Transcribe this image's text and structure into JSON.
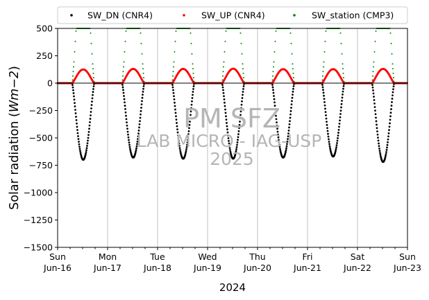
{
  "chart_data": {
    "type": "scatter",
    "title": "",
    "xlabel": "2024",
    "ylabel_prefix": "Solar radiation (",
    "ylabel_unit": "Wm−2",
    "ylabel_suffix": ")",
    "ylim": [
      -1500,
      500
    ],
    "yticks": [
      500,
      250,
      0,
      -250,
      -500,
      -750,
      -1000,
      -1250,
      -1500
    ],
    "ytick_labels": [
      "500",
      "250",
      "0",
      "−250",
      "−500",
      "−750",
      "−1000",
      "−1250",
      "−1500"
    ],
    "x_dates": [
      "2024-06-16",
      "2024-06-17",
      "2024-06-18",
      "2024-06-19",
      "2024-06-20",
      "2024-06-21",
      "2024-06-22",
      "2024-06-23"
    ],
    "x_day_labels": [
      "Sun",
      "Mon",
      "Tue",
      "Wed",
      "Thu",
      "Fri",
      "Sat",
      "Sun"
    ],
    "x_date_labels": [
      "Jun-16",
      "Jun-17",
      "Jun-18",
      "Jun-19",
      "Jun-20",
      "Jun-21",
      "Jun-22",
      "Jun-23"
    ],
    "grid": "vertical",
    "legend": {
      "placement": "top-center",
      "entries": [
        "SW_DN (CNR4)",
        "SW_UP (CNR4)",
        "SW_station (CMP3)"
      ]
    },
    "watermark": [
      "PM SFZ",
      "LAB MICRO - IAG-USP",
      "2025"
    ],
    "series": [
      {
        "name": "SW_DN (CNR4)",
        "color": "#000000",
        "daily_sunrise_hour": 7.0,
        "daily_sunset_hour": 17.6,
        "daily_min": [
          -700,
          -680,
          -690,
          -690,
          -680,
          -670,
          -720
        ]
      },
      {
        "name": "SW_UP (CNR4)",
        "color": "#ff0000",
        "daily_sunrise_hour": 7.0,
        "daily_sunset_hour": 17.6,
        "daily_max": [
          125,
          130,
          130,
          132,
          128,
          128,
          130
        ]
      },
      {
        "name": "SW_station (CMP3)",
        "color": "#008000",
        "daily_sunrise_hour": 7.0,
        "daily_sunset_hour": 17.6,
        "daily_max": [
          500,
          500,
          500,
          500,
          500,
          500,
          500
        ]
      }
    ],
    "colors": {
      "axis": "#000000",
      "grid": "#b0b0b0",
      "zero_line": "#000000"
    }
  }
}
